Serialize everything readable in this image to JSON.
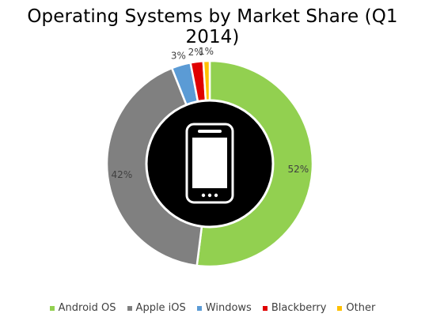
{
  "chart_data": {
    "type": "pie",
    "subtype": "donut",
    "title": "Operating Systems by Market Share (Q1 2014)",
    "legend_position": "bottom",
    "center_icon": "smartphone-icon",
    "slices": [
      {
        "name": "Android OS",
        "value": 52,
        "label": "52%",
        "color": "#92d050"
      },
      {
        "name": "Apple iOS",
        "value": 42,
        "label": "42%",
        "color": "#808080"
      },
      {
        "name": "Windows",
        "value": 3,
        "label": "3%",
        "color": "#5b9bd5"
      },
      {
        "name": "Blackberry",
        "value": 2,
        "label": "2%",
        "color": "#e00000"
      },
      {
        "name": "Other",
        "value": 1,
        "label": "1%",
        "color": "#ffc000"
      }
    ]
  }
}
